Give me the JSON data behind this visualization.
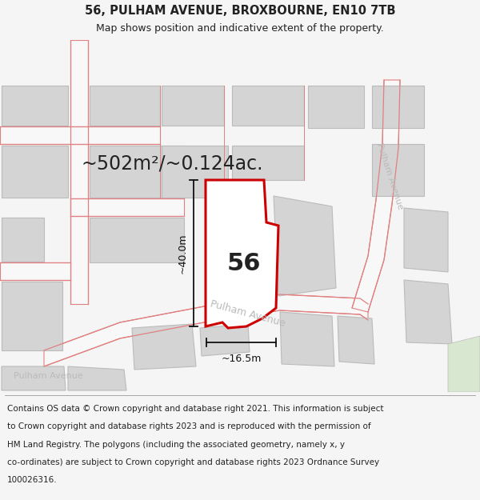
{
  "title": "56, PULHAM AVENUE, BROXBOURNE, EN10 7TB",
  "subtitle": "Map shows position and indicative extent of the property.",
  "area_text": "~502m²/~0.124ac.",
  "label_56": "56",
  "dim_height": "~40.0m",
  "dim_width": "~16.5m",
  "road_label_diag": "Pulham Avenue",
  "road_label_right": "Pulham Avenue",
  "road_label_left": "Pulham Avenue",
  "footer_lines": [
    "Contains OS data © Crown copyright and database right 2021. This information is subject",
    "to Crown copyright and database rights 2023 and is reproduced with the permission of",
    "HM Land Registry. The polygons (including the associated geometry, namely x, y",
    "co-ordinates) are subject to Crown copyright and database rights 2023 Ordnance Survey",
    "100026316."
  ],
  "bg_color": "#f5f5f5",
  "map_bg": "#f8f8f8",
  "footer_bg": "#ffffff",
  "plot_fill": "#ffffff",
  "plot_edge": "#cc0000",
  "building_fill": "#d4d4d4",
  "building_edge": "#bbbbbb",
  "road_color": "#f5f5f5",
  "road_line": "#e08080",
  "green_fill": "#d8e8d0",
  "dim_color": "#111111",
  "text_color": "#222222",
  "road_text_color": "#bbbbbb",
  "title_fontsize": 10.5,
  "subtitle_fontsize": 9,
  "area_fontsize": 17,
  "label_fontsize": 22,
  "dim_fontsize": 9,
  "footer_fontsize": 7.5
}
